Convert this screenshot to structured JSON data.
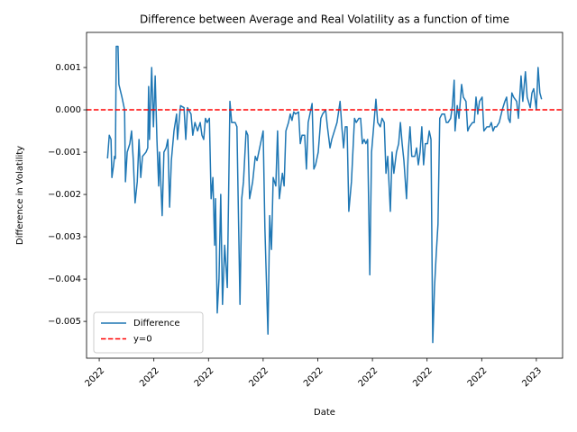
{
  "chart_data": {
    "type": "line",
    "title": "Difference between Average and Real Volatility as a function of time",
    "x_label": "Date",
    "y_label": "Difference in Volatility",
    "x": [
      2022.019,
      2022.023,
      2022.027,
      2022.029,
      2022.033,
      2022.035,
      2022.037,
      2022.039,
      2022.043,
      2022.045,
      2022.052,
      2022.058,
      2022.06,
      2022.064,
      2022.07,
      2022.074,
      2022.078,
      2022.082,
      2022.087,
      2022.091,
      2022.095,
      2022.099,
      2022.107,
      2022.111,
      2022.113,
      2022.115,
      2022.12,
      2022.124,
      2022.128,
      2022.132,
      2022.136,
      2022.138,
      2022.144,
      2022.148,
      2022.153,
      2022.157,
      2022.161,
      2022.165,
      2022.171,
      2022.177,
      2022.179,
      2022.186,
      2022.194,
      2022.198,
      2022.202,
      2022.21,
      2022.214,
      2022.219,
      2022.225,
      2022.231,
      2022.235,
      2022.239,
      2022.243,
      2022.247,
      2022.252,
      2022.256,
      2022.26,
      2022.264,
      2022.266,
      2022.27,
      2022.274,
      2022.278,
      2022.282,
      2022.287,
      2022.293,
      2022.299,
      2022.303,
      2022.311,
      2022.315,
      2022.322,
      2022.326,
      2022.33,
      2022.336,
      2022.34,
      2022.344,
      2022.351,
      2022.357,
      2022.361,
      2022.365,
      2022.369,
      2022.375,
      2022.379,
      2022.386,
      2022.39,
      2022.394,
      2022.398,
      2022.404,
      2022.408,
      2022.412,
      2022.419,
      2022.423,
      2022.427,
      2022.433,
      2022.437,
      2022.441,
      2022.445,
      2022.449,
      2022.456,
      2022.46,
      2022.464,
      2022.47,
      2022.474,
      2022.478,
      2022.487,
      2022.491,
      2022.495,
      2022.501,
      2022.507,
      2022.511,
      2022.518,
      2022.522,
      2022.528,
      2022.532,
      2022.538,
      2022.544,
      2022.551,
      2022.555,
      2022.559,
      2022.563,
      2022.567,
      2022.571,
      2022.577,
      2022.584,
      2022.588,
      2022.594,
      2022.598,
      2022.602,
      2022.606,
      2022.61,
      2022.614,
      2022.619,
      2022.623,
      2022.627,
      2022.633,
      2022.637,
      2022.643,
      2022.647,
      2022.652,
      2022.656,
      2022.66,
      2022.666,
      2022.67,
      2022.674,
      2022.68,
      2022.685,
      2022.689,
      2022.693,
      2022.697,
      2022.703,
      2022.707,
      2022.711,
      2022.715,
      2022.722,
      2022.726,
      2022.73,
      2022.734,
      2022.738,
      2022.742,
      2022.746,
      2022.751,
      2022.755,
      2022.759,
      2022.763,
      2022.767,
      2022.771,
      2022.775,
      2022.779,
      2022.784,
      2022.79,
      2022.794,
      2022.798,
      2022.804,
      2022.808,
      2022.812,
      2022.814,
      2022.819,
      2022.823,
      2022.829,
      2022.833,
      2022.839,
      2022.843,
      2022.847,
      2022.854,
      2022.858,
      2022.862,
      2022.866,
      2022.87,
      2022.876,
      2022.88,
      2022.887,
      2022.893,
      2022.897,
      2022.901,
      2022.905,
      2022.909,
      2022.915,
      2022.922,
      2022.928,
      2022.932,
      2022.936,
      2022.94,
      2022.944,
      2022.948,
      2022.955,
      2022.959,
      2022.965,
      2022.969,
      2022.975,
      2022.979,
      2022.986,
      2022.99,
      2022.994,
      2023.0,
      2023.004,
      2023.008,
      2023.012
    ],
    "series": [
      {
        "name": "Difference",
        "color": "#1f77b4",
        "values": [
          -0.00115,
          -0.0006,
          -0.0007,
          -0.0016,
          -0.0013,
          -0.0011,
          -0.00115,
          0.0015,
          0.0015,
          0.0006,
          0.0003,
          0.0,
          -0.0017,
          -0.001,
          -0.0008,
          -0.0005,
          -0.0012,
          -0.0022,
          -0.0017,
          -0.0007,
          -0.0016,
          -0.0011,
          -0.001,
          -0.0009,
          0.00055,
          -0.0007,
          0.001,
          -0.0004,
          0.0008,
          -0.0007,
          -0.0018,
          -0.001,
          -0.0025,
          -0.001,
          -0.0009,
          -0.0007,
          -0.0023,
          -0.0012,
          -0.0005,
          -0.0001,
          -0.0007,
          0.0001,
          5e-05,
          -0.0007,
          5e-05,
          -0.0001,
          -0.0006,
          -0.0003,
          -0.0005,
          -0.0003,
          -0.0006,
          -0.0007,
          -0.0002,
          -0.0003,
          -0.0002,
          -0.0021,
          -0.0016,
          -0.0032,
          -0.0021,
          -0.0048,
          -0.004,
          -0.002,
          -0.0046,
          -0.0032,
          -0.0042,
          0.0002,
          -0.0003,
          -0.0003,
          -0.0004,
          -0.0046,
          -0.0021,
          -0.0017,
          -0.0005,
          -0.0006,
          -0.0021,
          -0.0017,
          -0.0011,
          -0.0012,
          -0.001,
          -0.0008,
          -0.0005,
          -0.0028,
          -0.0053,
          -0.0025,
          -0.0033,
          -0.0016,
          -0.0018,
          -0.0005,
          -0.0021,
          -0.0015,
          -0.0018,
          -0.0005,
          -0.0003,
          -0.0001,
          -0.00025,
          -5e-05,
          -0.0001,
          -5e-05,
          -0.0008,
          -0.0006,
          -0.0006,
          -0.0014,
          -0.0003,
          0.00015,
          -0.0014,
          -0.0013,
          -0.001,
          -0.0002,
          -0.0001,
          0.0,
          -0.0004,
          -0.0009,
          -0.0007,
          -0.0005,
          -0.0003,
          0.0002,
          -0.0004,
          -0.0009,
          -0.0004,
          -0.0004,
          -0.0024,
          -0.0017,
          -0.0002,
          -0.0003,
          -0.0002,
          -0.0002,
          -0.0008,
          -0.0007,
          -0.0008,
          -0.0007,
          -0.0039,
          -0.001,
          -0.0005,
          0.00025,
          -0.0003,
          -0.0004,
          -0.0002,
          -0.0003,
          -0.0015,
          -0.0011,
          -0.0024,
          -0.001,
          -0.0015,
          -0.001,
          -0.0008,
          -0.0003,
          -0.0008,
          -0.0012,
          -0.0021,
          -0.001,
          -0.0004,
          -0.0011,
          -0.0011,
          -0.0009,
          -0.0013,
          -0.001,
          -0.0004,
          -0.0013,
          -0.0008,
          -0.0008,
          -0.0005,
          -0.0007,
          -0.0055,
          -0.0042,
          -0.0034,
          -0.0027,
          -0.0002,
          -0.0001,
          -0.0001,
          -0.0003,
          -0.0003,
          -0.0002,
          0.0001,
          0.0007,
          -0.0005,
          0.0001,
          -0.0002,
          0.0006,
          0.0003,
          0.0002,
          -0.0005,
          -0.0004,
          -0.0003,
          -0.0003,
          0.0003,
          -0.0001,
          0.0002,
          0.0003,
          -0.0005,
          -0.0004,
          -0.0004,
          -0.0003,
          -0.0005,
          -0.0004,
          -0.0004,
          -0.0003,
          0.0,
          0.0002,
          0.0003,
          -0.0002,
          -0.0003,
          0.0004,
          0.0003,
          0.0002,
          -0.0002,
          0.0008,
          0.0002,
          0.0009,
          0.0003,
          5e-05,
          0.0004,
          0.0005,
          0.0,
          0.001,
          0.0004,
          0.00025
        ]
      }
    ],
    "reference_line": {
      "name": "y=0",
      "value": 0,
      "color": "#ff0000"
    },
    "xlim": [
      2021.971,
      2023.06
    ],
    "xticks": [
      2022,
      {
        "value": 2022.125,
        "label": "2022"
      },
      {
        "value": 2022.25,
        "label": "2022"
      },
      {
        "value": 2022.375,
        "label": "2022"
      },
      {
        "value": 2022.5,
        "label": "2022"
      },
      {
        "value": 2022.625,
        "label": "2022"
      },
      {
        "value": 2022.75,
        "label": "2022"
      },
      {
        "value": 2022.875,
        "label": "2022"
      },
      2023
    ],
    "ylim": [
      -0.00587,
      0.00183
    ],
    "yticks": [
      {
        "value": -0.005,
        "label": "−0.005"
      },
      {
        "value": -0.004,
        "label": "−0.004"
      },
      {
        "value": -0.003,
        "label": "−0.003"
      },
      {
        "value": -0.002,
        "label": "−0.002"
      },
      {
        "value": -0.001,
        "label": "−0.001"
      },
      {
        "value": 0,
        "label": "0.000"
      },
      {
        "value": 0.001,
        "label": "0.001"
      }
    ],
    "legend_position": "lower left"
  }
}
